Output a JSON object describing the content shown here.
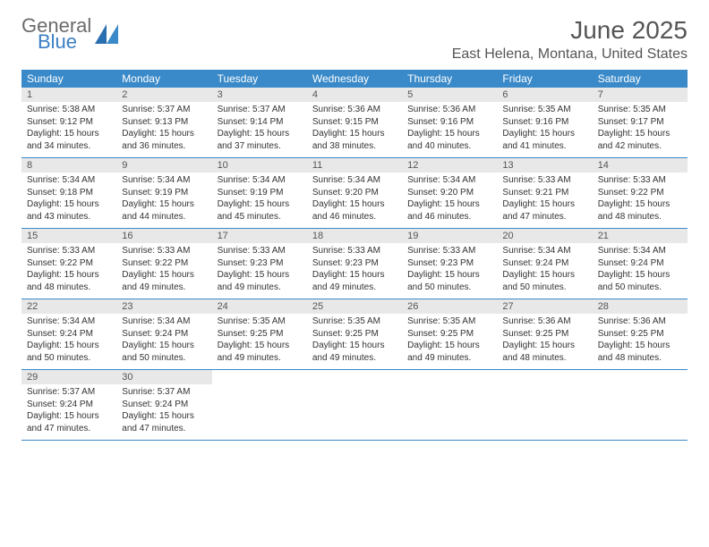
{
  "brand": {
    "line1": "General",
    "line2": "Blue"
  },
  "title": "June 2025",
  "location": "East Helena, Montana, United States",
  "colors": {
    "header_bg": "#3a8ac9",
    "header_fg": "#ffffff",
    "daynum_bg": "#e8e8e8",
    "border": "#3a8ac9",
    "text": "#333333",
    "title_color": "#555555",
    "logo_gray": "#6b6b6b",
    "logo_blue": "#3a7fc4"
  },
  "day_headers": [
    "Sunday",
    "Monday",
    "Tuesday",
    "Wednesday",
    "Thursday",
    "Friday",
    "Saturday"
  ],
  "weeks": [
    [
      {
        "n": "1",
        "sr": "5:38 AM",
        "ss": "9:12 PM",
        "dl": "15 hours and 34 minutes."
      },
      {
        "n": "2",
        "sr": "5:37 AM",
        "ss": "9:13 PM",
        "dl": "15 hours and 36 minutes."
      },
      {
        "n": "3",
        "sr": "5:37 AM",
        "ss": "9:14 PM",
        "dl": "15 hours and 37 minutes."
      },
      {
        "n": "4",
        "sr": "5:36 AM",
        "ss": "9:15 PM",
        "dl": "15 hours and 38 minutes."
      },
      {
        "n": "5",
        "sr": "5:36 AM",
        "ss": "9:16 PM",
        "dl": "15 hours and 40 minutes."
      },
      {
        "n": "6",
        "sr": "5:35 AM",
        "ss": "9:16 PM",
        "dl": "15 hours and 41 minutes."
      },
      {
        "n": "7",
        "sr": "5:35 AM",
        "ss": "9:17 PM",
        "dl": "15 hours and 42 minutes."
      }
    ],
    [
      {
        "n": "8",
        "sr": "5:34 AM",
        "ss": "9:18 PM",
        "dl": "15 hours and 43 minutes."
      },
      {
        "n": "9",
        "sr": "5:34 AM",
        "ss": "9:19 PM",
        "dl": "15 hours and 44 minutes."
      },
      {
        "n": "10",
        "sr": "5:34 AM",
        "ss": "9:19 PM",
        "dl": "15 hours and 45 minutes."
      },
      {
        "n": "11",
        "sr": "5:34 AM",
        "ss": "9:20 PM",
        "dl": "15 hours and 46 minutes."
      },
      {
        "n": "12",
        "sr": "5:34 AM",
        "ss": "9:20 PM",
        "dl": "15 hours and 46 minutes."
      },
      {
        "n": "13",
        "sr": "5:33 AM",
        "ss": "9:21 PM",
        "dl": "15 hours and 47 minutes."
      },
      {
        "n": "14",
        "sr": "5:33 AM",
        "ss": "9:22 PM",
        "dl": "15 hours and 48 minutes."
      }
    ],
    [
      {
        "n": "15",
        "sr": "5:33 AM",
        "ss": "9:22 PM",
        "dl": "15 hours and 48 minutes."
      },
      {
        "n": "16",
        "sr": "5:33 AM",
        "ss": "9:22 PM",
        "dl": "15 hours and 49 minutes."
      },
      {
        "n": "17",
        "sr": "5:33 AM",
        "ss": "9:23 PM",
        "dl": "15 hours and 49 minutes."
      },
      {
        "n": "18",
        "sr": "5:33 AM",
        "ss": "9:23 PM",
        "dl": "15 hours and 49 minutes."
      },
      {
        "n": "19",
        "sr": "5:33 AM",
        "ss": "9:23 PM",
        "dl": "15 hours and 50 minutes."
      },
      {
        "n": "20",
        "sr": "5:34 AM",
        "ss": "9:24 PM",
        "dl": "15 hours and 50 minutes."
      },
      {
        "n": "21",
        "sr": "5:34 AM",
        "ss": "9:24 PM",
        "dl": "15 hours and 50 minutes."
      }
    ],
    [
      {
        "n": "22",
        "sr": "5:34 AM",
        "ss": "9:24 PM",
        "dl": "15 hours and 50 minutes."
      },
      {
        "n": "23",
        "sr": "5:34 AM",
        "ss": "9:24 PM",
        "dl": "15 hours and 50 minutes."
      },
      {
        "n": "24",
        "sr": "5:35 AM",
        "ss": "9:25 PM",
        "dl": "15 hours and 49 minutes."
      },
      {
        "n": "25",
        "sr": "5:35 AM",
        "ss": "9:25 PM",
        "dl": "15 hours and 49 minutes."
      },
      {
        "n": "26",
        "sr": "5:35 AM",
        "ss": "9:25 PM",
        "dl": "15 hours and 49 minutes."
      },
      {
        "n": "27",
        "sr": "5:36 AM",
        "ss": "9:25 PM",
        "dl": "15 hours and 48 minutes."
      },
      {
        "n": "28",
        "sr": "5:36 AM",
        "ss": "9:25 PM",
        "dl": "15 hours and 48 minutes."
      }
    ],
    [
      {
        "n": "29",
        "sr": "5:37 AM",
        "ss": "9:24 PM",
        "dl": "15 hours and 47 minutes."
      },
      {
        "n": "30",
        "sr": "5:37 AM",
        "ss": "9:24 PM",
        "dl": "15 hours and 47 minutes."
      },
      null,
      null,
      null,
      null,
      null
    ]
  ],
  "labels": {
    "sunrise": "Sunrise:",
    "sunset": "Sunset:",
    "daylight": "Daylight:"
  }
}
